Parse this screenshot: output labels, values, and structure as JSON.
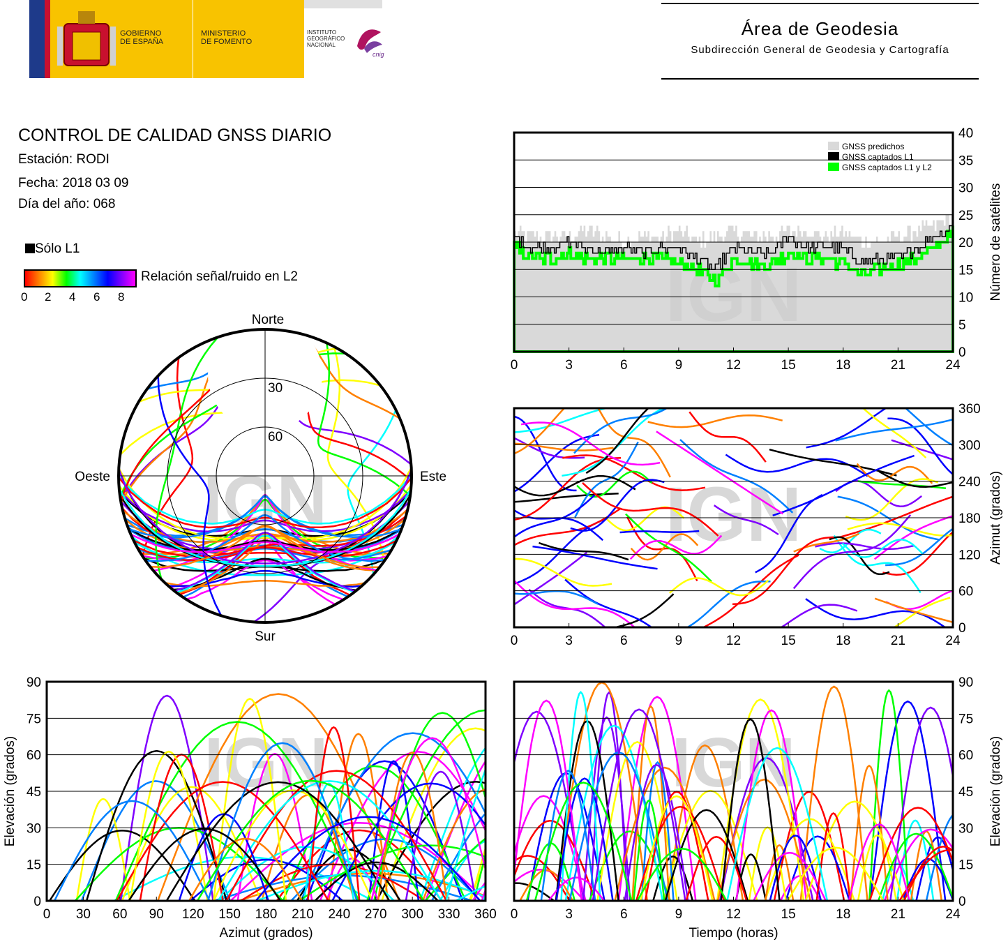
{
  "header": {
    "gov_line1": "GOBIERNO",
    "gov_line2": "DE ESPAÑA",
    "min_line1": "MINISTERIO",
    "min_line2": "DE FOMENTO",
    "inst_line1": "INSTITUTO",
    "inst_line2": "GEOGRÁFICO",
    "inst_line3": "NACIONAL",
    "cnig": "cnig",
    "area_title": "Área de Geodesia",
    "area_subtitle": "Subdirección General de Geodesia y Cartografía"
  },
  "info": {
    "title": "CONTROL DE CALIDAD GNSS DIARIO",
    "station": "Estación: RODI",
    "date": "Fecha: 2018 03 09",
    "doy": "Día del año: 068",
    "legend_l1": "Sólo L1",
    "legend_snr": "Relación señal/ruido en L2",
    "snr_ticks": [
      "0",
      "2",
      "4",
      "6",
      "8"
    ]
  },
  "watermark": "IGN",
  "colors": {
    "predicted": "#d9d9d9",
    "l1": "#000000",
    "l1l2": "#00ff00",
    "snr_scale": [
      "#ff0000",
      "#ff8000",
      "#ffff00",
      "#00ff00",
      "#00ffff",
      "#0080ff",
      "#0000ff",
      "#8000ff",
      "#ff00ff"
    ]
  },
  "chart_data": [
    {
      "id": "sat-count",
      "type": "line",
      "ylabel": "Número de satélites",
      "xlim": [
        0,
        24
      ],
      "ylim": [
        0,
        40
      ],
      "xticks": [
        "0",
        "3",
        "6",
        "9",
        "12",
        "15",
        "18",
        "21",
        "24"
      ],
      "yticks": [
        "0",
        "5",
        "10",
        "15",
        "20",
        "25",
        "30",
        "35",
        "40"
      ],
      "legend": [
        "GNSS predichos",
        "GNSS captados L1",
        "GNSS captados L1 y L2"
      ],
      "legend_position": "top-right",
      "grid": true,
      "x": [
        0,
        1,
        2,
        3,
        4,
        5,
        6,
        7,
        8,
        9,
        10,
        11,
        12,
        13,
        14,
        15,
        16,
        17,
        18,
        19,
        20,
        21,
        22,
        23,
        24
      ],
      "series": [
        {
          "name": "GNSS predichos",
          "values": [
            22,
            21,
            21,
            21,
            22,
            21,
            20,
            21,
            21,
            22,
            20,
            21,
            22,
            21,
            21,
            22,
            22,
            21,
            22,
            20,
            20,
            21,
            22,
            23,
            25
          ]
        },
        {
          "name": "GNSS captados L1",
          "values": [
            21,
            19,
            19,
            20,
            19,
            18,
            19,
            18,
            19,
            19,
            17,
            15,
            19,
            18,
            18,
            21,
            19,
            19,
            19,
            16,
            17,
            17,
            19,
            21,
            23
          ]
        },
        {
          "name": "GNSS captados L1 y L2",
          "values": [
            19,
            17,
            17,
            18,
            17,
            17,
            17,
            17,
            17,
            16,
            15,
            13,
            17,
            16,
            16,
            18,
            17,
            17,
            16,
            14,
            15,
            16,
            17,
            19,
            22
          ]
        }
      ]
    },
    {
      "id": "skyplot",
      "type": "scatter",
      "cardinals": [
        "Norte",
        "Sur",
        "Este",
        "Oeste"
      ],
      "elevation_rings": [
        "30",
        "60"
      ]
    },
    {
      "id": "azimuth-time",
      "type": "scatter",
      "ylabel": "Azimut (grados)",
      "xlim": [
        0,
        24
      ],
      "ylim": [
        0,
        360
      ],
      "xticks": [
        "0",
        "3",
        "6",
        "9",
        "12",
        "15",
        "18",
        "21",
        "24"
      ],
      "yticks": [
        "0",
        "60",
        "120",
        "180",
        "240",
        "300",
        "360"
      ],
      "grid": true
    },
    {
      "id": "elev-azimuth",
      "type": "scatter",
      "xlabel": "Azimut (grados)",
      "ylabel": "Elevación (grados)",
      "xlim": [
        0,
        360
      ],
      "ylim": [
        0,
        90
      ],
      "xticks": [
        "0",
        "30",
        "60",
        "90",
        "120",
        "150",
        "180",
        "210",
        "240",
        "270",
        "300",
        "330",
        "360"
      ],
      "yticks": [
        "0",
        "15",
        "30",
        "45",
        "60",
        "75",
        "90"
      ],
      "grid": true
    },
    {
      "id": "elev-time",
      "type": "scatter",
      "xlabel": "Tiempo (horas)",
      "ylabel": "Elevación (grados)",
      "xlim": [
        0,
        24
      ],
      "ylim": [
        0,
        90
      ],
      "xticks": [
        "0",
        "3",
        "6",
        "9",
        "12",
        "15",
        "18",
        "21",
        "24"
      ],
      "yticks": [
        "0",
        "15",
        "30",
        "45",
        "60",
        "75",
        "90"
      ],
      "grid": true
    }
  ]
}
